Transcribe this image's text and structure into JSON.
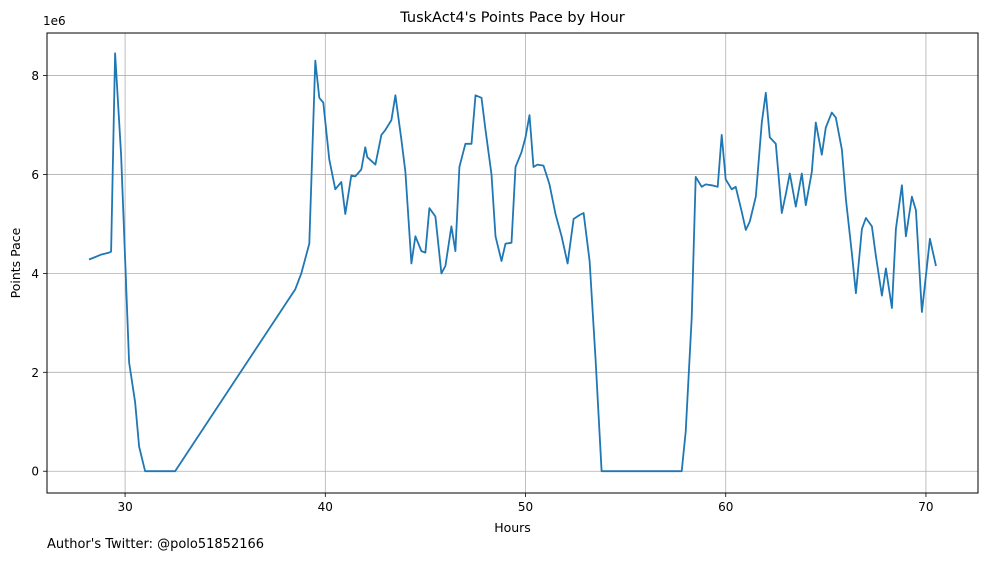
{
  "chart_data": {
    "type": "line",
    "title": "TuskAct4's Points Pace by Hour",
    "xlabel": "Hours",
    "ylabel": "Points Pace",
    "y_multiplier_label": "1e6",
    "xlim": [
      26.1,
      72.6
    ],
    "ylim": [
      -0.44,
      8.86
    ],
    "xticks": [
      30,
      40,
      50,
      60,
      70
    ],
    "yticks": [
      0,
      2,
      4,
      6,
      8
    ],
    "grid": true,
    "line_color": "#1f77b4",
    "series": [
      {
        "x": [
          28.2,
          28.5,
          28.8,
          29.2,
          29.3,
          29.5,
          29.8,
          30.0,
          30.2,
          30.5,
          30.7,
          31.0,
          32.5,
          38.5,
          38.8,
          39.2,
          39.5,
          39.7,
          39.9,
          40.2,
          40.5,
          40.8,
          41.0,
          41.3,
          41.5,
          41.8,
          42.0,
          42.1,
          42.5,
          42.8,
          43.0,
          43.3,
          43.5,
          43.8,
          44.0,
          44.3,
          44.5,
          44.8,
          45.0,
          45.2,
          45.5,
          45.8,
          46.0,
          46.3,
          46.5,
          46.7,
          47.0,
          47.3,
          47.5,
          47.8,
          48.0,
          48.3,
          48.5,
          48.8,
          49.0,
          49.3,
          49.5,
          49.8,
          50.0,
          50.2,
          50.4,
          50.6,
          50.9,
          51.2,
          51.5,
          51.8,
          52.1,
          52.4,
          52.7,
          52.9,
          53.2,
          53.5,
          53.8,
          57.5,
          57.8,
          58.0,
          58.3,
          58.5,
          58.8,
          59.0,
          59.3,
          59.6,
          59.8,
          60.0,
          60.3,
          60.5,
          60.8,
          61.0,
          61.2,
          61.5,
          61.8,
          62.0,
          62.2,
          62.5,
          62.8,
          63.0,
          63.2,
          63.5,
          63.8,
          64.0,
          64.3,
          64.5,
          64.8,
          65.0,
          65.3,
          65.5,
          65.8,
          66.0,
          66.3,
          66.5,
          66.8,
          67.0,
          67.3,
          67.5,
          67.8,
          68.0,
          68.3,
          68.5,
          68.8,
          69.0,
          69.3,
          69.5,
          69.8,
          70.0,
          70.2,
          70.5
        ],
        "values": [
          4.28,
          4.33,
          4.38,
          4.42,
          4.44,
          8.45,
          6.4,
          4.3,
          2.2,
          1.4,
          0.5,
          0.0,
          0.0,
          3.68,
          4.0,
          4.6,
          8.3,
          7.55,
          7.45,
          6.3,
          5.7,
          5.85,
          5.2,
          5.98,
          5.96,
          6.1,
          6.55,
          6.35,
          6.2,
          6.8,
          6.9,
          7.1,
          7.6,
          6.7,
          6.05,
          4.2,
          4.75,
          4.45,
          4.42,
          5.32,
          5.15,
          4.0,
          4.15,
          4.95,
          4.45,
          6.15,
          6.62,
          6.62,
          7.6,
          7.55,
          6.9,
          6.0,
          4.75,
          4.25,
          4.6,
          4.62,
          6.15,
          6.45,
          6.75,
          7.2,
          6.15,
          6.2,
          6.18,
          5.8,
          5.2,
          4.75,
          4.2,
          5.1,
          5.18,
          5.22,
          4.25,
          2.25,
          0.0,
          0.0,
          0.0,
          0.8,
          3.1,
          5.95,
          5.75,
          5.8,
          5.78,
          5.75,
          6.8,
          5.9,
          5.7,
          5.75,
          5.25,
          4.88,
          5.05,
          5.55,
          7.05,
          7.65,
          6.75,
          6.62,
          5.22,
          5.6,
          6.02,
          5.35,
          6.02,
          5.38,
          6.05,
          7.05,
          6.4,
          6.95,
          7.25,
          7.15,
          6.5,
          5.5,
          4.4,
          3.6,
          4.9,
          5.12,
          4.95,
          4.35,
          3.55,
          4.1,
          3.3,
          4.9,
          5.78,
          4.75,
          5.55,
          5.28,
          3.22,
          3.95,
          4.7,
          4.15
        ]
      }
    ]
  },
  "footer": {
    "text": "Author's Twitter: @polo51852166"
  }
}
